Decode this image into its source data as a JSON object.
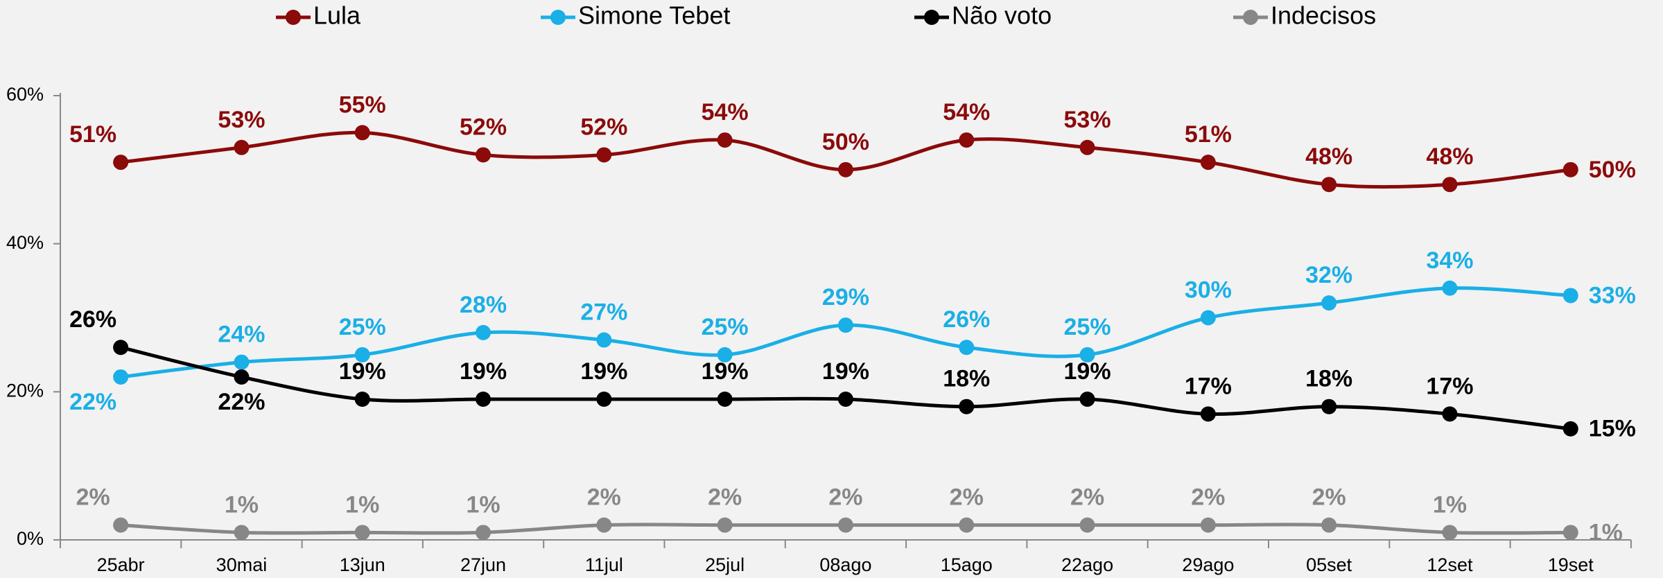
{
  "chart_data": {
    "type": "line",
    "categories": [
      "25abr",
      "30mai",
      "13jun",
      "27jun",
      "11jul",
      "25jul",
      "08ago",
      "15ago",
      "22ago",
      "29ago",
      "05set",
      "12set",
      "19set"
    ],
    "series": [
      {
        "name": "Lula",
        "color": "#8b0a0a",
        "values": [
          51,
          53,
          55,
          52,
          52,
          54,
          50,
          54,
          53,
          51,
          48,
          48,
          50
        ],
        "value_labels": [
          "51%",
          "53%",
          "55%",
          "52%",
          "52%",
          "54%",
          "50%",
          "54%",
          "53%",
          "51%",
          "48%",
          "48%",
          "50%"
        ]
      },
      {
        "name": "Simone Tebet",
        "color": "#1aafe6",
        "values": [
          22,
          24,
          25,
          28,
          27,
          25,
          29,
          26,
          25,
          30,
          32,
          34,
          33
        ],
        "value_labels": [
          "22%",
          "24%",
          "25%",
          "28%",
          "27%",
          "25%",
          "29%",
          "26%",
          "25%",
          "30%",
          "32%",
          "34%",
          "33%"
        ]
      },
      {
        "name": "Não voto",
        "color": "#000000",
        "values": [
          26,
          22,
          19,
          19,
          19,
          19,
          19,
          18,
          19,
          17,
          18,
          17,
          15
        ],
        "value_labels": [
          "26%",
          "22%",
          "19%",
          "19%",
          "19%",
          "19%",
          "19%",
          "18%",
          "19%",
          "17%",
          "18%",
          "17%",
          "15%"
        ]
      },
      {
        "name": "Indecisos",
        "color": "#878787",
        "values": [
          2,
          1,
          1,
          1,
          2,
          2,
          2,
          2,
          2,
          2,
          2,
          1,
          1
        ],
        "value_labels": [
          "2%",
          "1%",
          "1%",
          "1%",
          "2%",
          "2%",
          "2%",
          "2%",
          "2%",
          "2%",
          "2%",
          "1%",
          "1%"
        ]
      }
    ],
    "ylim": [
      0,
      60
    ],
    "yticks": [
      {
        "value": 0,
        "label": "0%"
      },
      {
        "value": 20,
        "label": "20%"
      },
      {
        "value": 40,
        "label": "40%"
      },
      {
        "value": 60,
        "label": "60%"
      }
    ],
    "legend": "top"
  }
}
